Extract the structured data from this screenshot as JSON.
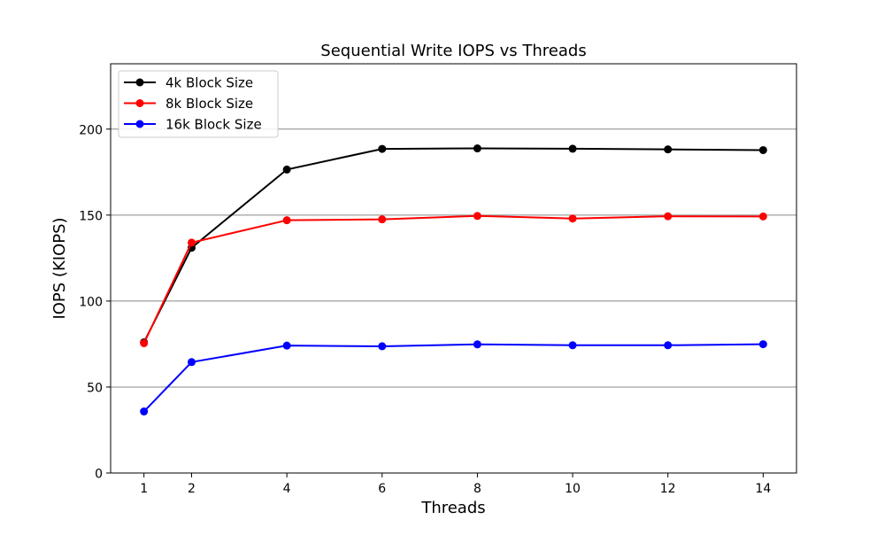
{
  "chart_data": {
    "type": "line",
    "title": "Sequential Write IOPS vs Threads",
    "xlabel": "Threads",
    "ylabel": "IOPS (KIOPS)",
    "x": [
      1,
      2,
      4,
      6,
      8,
      10,
      12,
      14
    ],
    "x_ticks": [
      "1",
      "2",
      "4",
      "6",
      "8",
      "10",
      "12",
      "14"
    ],
    "y_ticks": [
      "0",
      "50",
      "100",
      "150",
      "200"
    ],
    "xlim": [
      0.3,
      14.7
    ],
    "ylim": [
      0,
      238
    ],
    "grid": "horizontal",
    "legend_position": "top-left",
    "series": [
      {
        "name": "4k Block Size",
        "color": "#000000",
        "values": [
          76,
          131,
          176.5,
          188.5,
          188.8,
          188.6,
          188.2,
          187.8
        ]
      },
      {
        "name": "8k Block Size",
        "color": "#ff0000",
        "values": [
          75.5,
          134,
          147,
          147.5,
          149.5,
          148,
          149.3,
          149.2
        ]
      },
      {
        "name": "16k Block Size",
        "color": "#0000ff",
        "values": [
          35.8,
          64.5,
          74.1,
          73.7,
          74.8,
          74.3,
          74.3,
          74.9
        ]
      }
    ]
  }
}
